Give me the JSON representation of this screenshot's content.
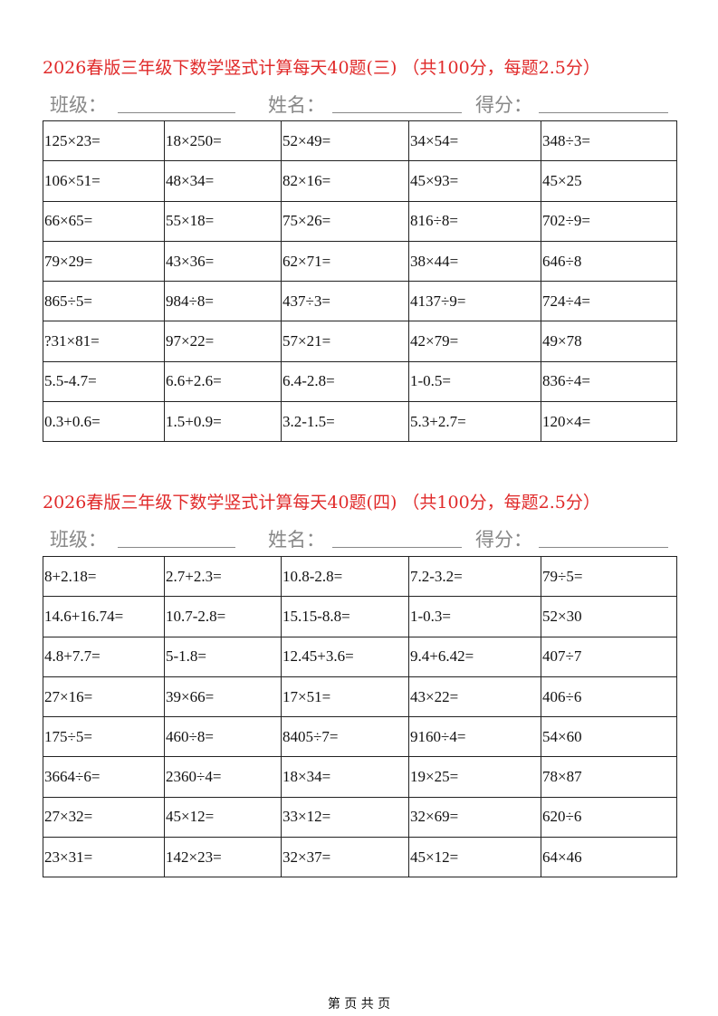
{
  "sections": [
    {
      "title": "2026春版三年级下数学竖式计算每天40题(三) （共100分，每题2.5分）",
      "labels": {
        "class": "班级：",
        "name": "姓名：",
        "score": "得分："
      },
      "rows": [
        [
          "125×23=",
          "18×250=",
          "52×49=",
          "34×54=",
          "348÷3="
        ],
        [
          "106×51=",
          "48×34=",
          "82×16=",
          "45×93=",
          "45×25"
        ],
        [
          "66×65=",
          "55×18=",
          "75×26=",
          "816÷8=",
          "702÷9="
        ],
        [
          "79×29=",
          "43×36=",
          "62×71=",
          "38×44=",
          "646÷8"
        ],
        [
          "865÷5=",
          "984÷8=",
          "437÷3=",
          "4137÷9=",
          "724÷4="
        ],
        [
          "?31×81=",
          "97×22=",
          "57×21=",
          "42×79=",
          "49×78"
        ],
        [
          "5.5-4.7=",
          "6.6+2.6=",
          "6.4-2.8=",
          "1-0.5=",
          "836÷4="
        ],
        [
          "0.3+0.6=",
          "1.5+0.9=",
          "3.2-1.5=",
          "5.3+2.7=",
          "120×4="
        ]
      ]
    },
    {
      "title": "2026春版三年级下数学竖式计算每天40题(四) （共100分，每题2.5分）",
      "labels": {
        "class": "班级：",
        "name": "姓名：",
        "score": "得分："
      },
      "rows": [
        [
          "8+2.18=",
          "2.7+2.3=",
          "10.8-2.8=",
          "7.2-3.2=",
          "79÷5="
        ],
        [
          "14.6+16.74=",
          "10.7-2.8=",
          "15.15-8.8=",
          "1-0.3=",
          "52×30"
        ],
        [
          "4.8+7.7=",
          "5-1.8=",
          "12.45+3.6=",
          "9.4+6.42=",
          "407÷7"
        ],
        [
          "27×16=",
          "39×66=",
          "17×51=",
          "43×22=",
          "406÷6"
        ],
        [
          "175÷5=",
          "460÷8=",
          "8405÷7=",
          "9160÷4=",
          "54×60"
        ],
        [
          "3664÷6=",
          "2360÷4=",
          "18×34=",
          "19×25=",
          "78×87"
        ],
        [
          "27×32=",
          "45×12=",
          "33×12=",
          "32×69=",
          "620÷6"
        ],
        [
          "23×31=",
          "142×23=",
          "32×37=",
          "45×12=",
          "64×46"
        ]
      ]
    }
  ],
  "footer": "第 页 共 页",
  "colors": {
    "title": "#e02a2a",
    "label": "#888888"
  }
}
